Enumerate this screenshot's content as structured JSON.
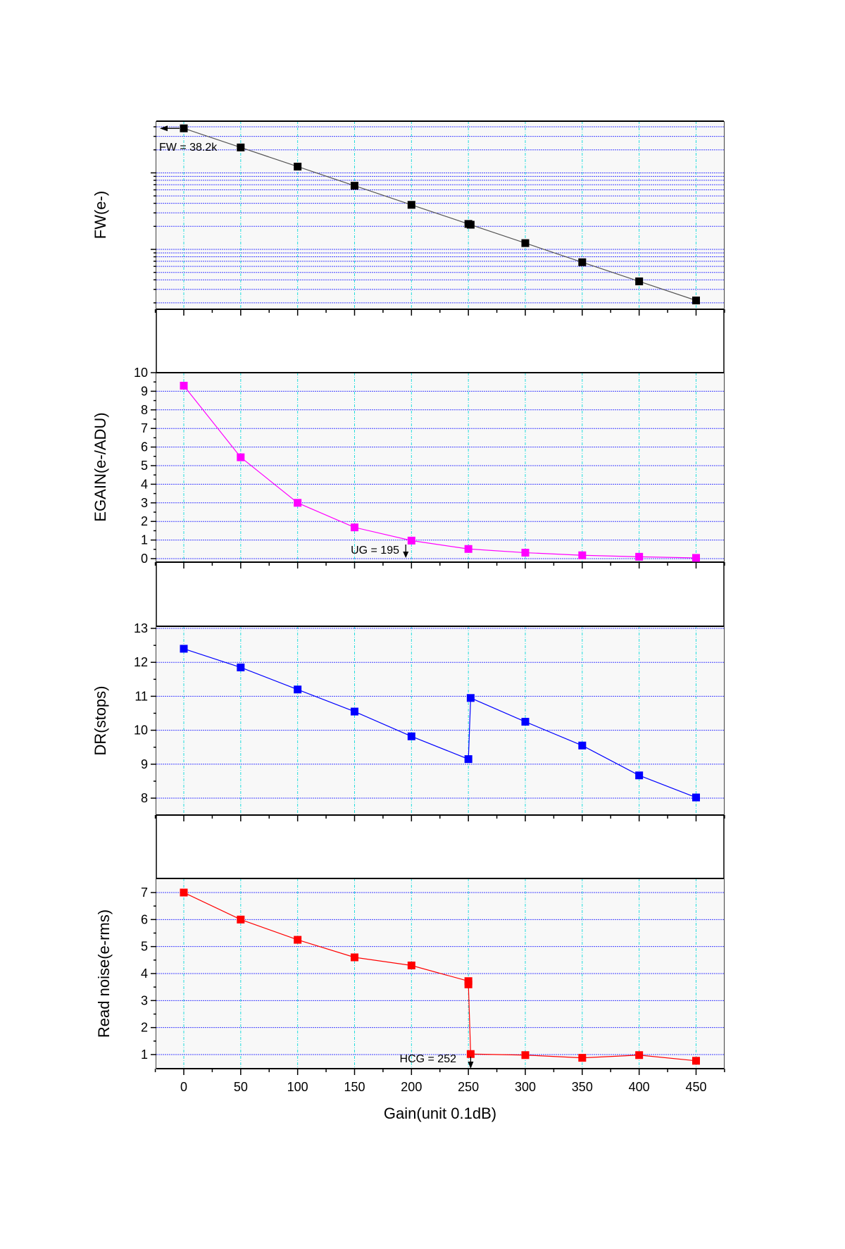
{
  "chart_data": [
    {
      "type": "line",
      "ylabel": "FW(e-)",
      "yscale": "log",
      "ylim": [
        165,
        47500
      ],
      "y_tick_labels_shown": false,
      "grid": true,
      "color": "#000000",
      "x": [
        0,
        50,
        100,
        150,
        200,
        250,
        252,
        300,
        350,
        400,
        450
      ],
      "y": [
        38200,
        21500,
        12080,
        6790,
        3820,
        2150,
        2100,
        1208,
        679,
        382,
        215
      ],
      "annotation": {
        "text": "FW = 38.2k",
        "x": 0,
        "y": 38200,
        "arrow": "left"
      }
    },
    {
      "type": "line",
      "ylabel": "EGAIN(e-/ADU)",
      "ylim": [
        0,
        10
      ],
      "yticks": [
        "0",
        "1",
        "2",
        "3",
        "4",
        "5",
        "6",
        "7",
        "8",
        "9",
        "10"
      ],
      "grid": true,
      "color": "#ff00ff",
      "x": [
        0,
        50,
        100,
        150,
        200,
        250,
        300,
        350,
        400,
        450
      ],
      "y": [
        9.3,
        5.45,
        3.0,
        1.68,
        0.97,
        0.52,
        0.32,
        0.18,
        0.1,
        0.04
      ],
      "annotation": {
        "text": "UG = 195",
        "x": 195,
        "arrow": "down"
      }
    },
    {
      "type": "line",
      "ylabel": "DR(stops)",
      "ylim": [
        8,
        13
      ],
      "yticks": [
        "8",
        "9",
        "10",
        "11",
        "12",
        "13"
      ],
      "grid": true,
      "color": "#0000ff",
      "x": [
        0,
        50,
        100,
        150,
        200,
        250,
        252,
        300,
        350,
        400,
        450
      ],
      "y": [
        12.4,
        11.85,
        11.2,
        10.55,
        9.82,
        9.15,
        10.95,
        10.25,
        9.55,
        8.67,
        8.02
      ]
    },
    {
      "type": "line",
      "ylabel": "Read noise(e-rms)",
      "xlabel": "Gain(unit 0.1dB)",
      "ylim": [
        1,
        7
      ],
      "yticks": [
        "1",
        "2",
        "3",
        "4",
        "5",
        "6",
        "7"
      ],
      "xticks": [
        "0",
        "50",
        "100",
        "150",
        "200",
        "250",
        "300",
        "350",
        "400",
        "450"
      ],
      "xlim": [
        -25,
        475
      ],
      "grid": true,
      "color": "#ff0000",
      "x": [
        0,
        50,
        100,
        150,
        200,
        250,
        250,
        252,
        300,
        350,
        400,
        450
      ],
      "y": [
        7.0,
        6.0,
        5.25,
        4.6,
        4.3,
        3.72,
        3.6,
        1.02,
        0.98,
        0.88,
        0.98,
        0.77
      ],
      "annotation": {
        "text": "HCG = 252",
        "x": 252,
        "arrow": "down"
      }
    }
  ]
}
